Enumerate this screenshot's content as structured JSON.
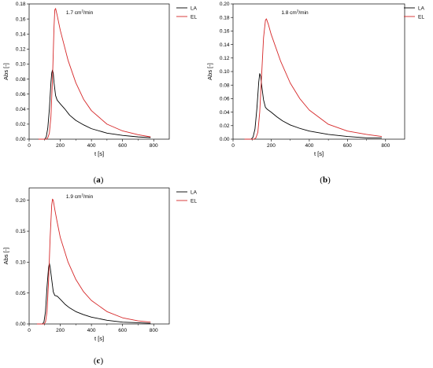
{
  "chart_data": [
    {
      "type": "line",
      "panel_label": "(a)",
      "panel_letter": "a",
      "title_base": "1.7 cm",
      "title_sup": "3",
      "title_tail": "/min",
      "xlabel": "t [s]",
      "ylabel": "Abs [-]",
      "xlim": [
        0,
        900
      ],
      "ylim": [
        0,
        0.18
      ],
      "xticks": [
        0,
        200,
        400,
        600,
        800
      ],
      "yticks": [
        0.0,
        0.02,
        0.04,
        0.06,
        0.08,
        0.1,
        0.12,
        0.14,
        0.16,
        0.18
      ],
      "legend_position": "top-right",
      "series": [
        {
          "name": "LA",
          "color": "#000000",
          "x": [
            60,
            100,
            110,
            120,
            130,
            140,
            145,
            150,
            155,
            160,
            170,
            180,
            200,
            230,
            260,
            300,
            350,
            400,
            500,
            600,
            700,
            780
          ],
          "y": [
            0.0,
            0.0,
            0.003,
            0.015,
            0.04,
            0.075,
            0.088,
            0.092,
            0.088,
            0.075,
            0.058,
            0.052,
            0.047,
            0.04,
            0.032,
            0.025,
            0.019,
            0.014,
            0.008,
            0.005,
            0.003,
            0.002
          ]
        },
        {
          "name": "EL",
          "color": "#d62728",
          "x": [
            60,
            110,
            120,
            130,
            140,
            150,
            160,
            165,
            170,
            180,
            200,
            250,
            300,
            350,
            400,
            500,
            600,
            700,
            780
          ],
          "y": [
            0.0,
            0.0,
            0.002,
            0.008,
            0.03,
            0.08,
            0.15,
            0.172,
            0.174,
            0.165,
            0.145,
            0.105,
            0.075,
            0.053,
            0.038,
            0.02,
            0.011,
            0.006,
            0.003
          ]
        }
      ]
    },
    {
      "type": "line",
      "panel_label": "(b)",
      "panel_letter": "b",
      "title_base": "1.8 cm",
      "title_sup": "3",
      "title_tail": "/min",
      "xlabel": "t [s]",
      "ylabel": "Abs [-]",
      "xlim": [
        0,
        900
      ],
      "ylim": [
        0,
        0.2
      ],
      "xticks": [
        0,
        200,
        400,
        600,
        800
      ],
      "yticks": [
        0.0,
        0.02,
        0.04,
        0.06,
        0.08,
        0.1,
        0.12,
        0.14,
        0.16,
        0.18,
        0.2
      ],
      "legend_position": "top-right",
      "series": [
        {
          "name": "LA",
          "color": "#000000",
          "x": [
            60,
            95,
            105,
            115,
            125,
            135,
            140,
            145,
            150,
            160,
            170,
            180,
            200,
            230,
            260,
            300,
            350,
            400,
            500,
            600,
            700,
            780
          ],
          "y": [
            0.0,
            0.0,
            0.003,
            0.015,
            0.045,
            0.085,
            0.097,
            0.093,
            0.08,
            0.058,
            0.047,
            0.044,
            0.04,
            0.033,
            0.027,
            0.021,
            0.016,
            0.012,
            0.007,
            0.004,
            0.002,
            0.002
          ]
        },
        {
          "name": "EL",
          "color": "#d62728",
          "x": [
            60,
            110,
            120,
            130,
            140,
            150,
            160,
            170,
            175,
            185,
            200,
            250,
            300,
            350,
            400,
            500,
            600,
            700,
            780
          ],
          "y": [
            0.0,
            0.0,
            0.002,
            0.01,
            0.04,
            0.095,
            0.15,
            0.176,
            0.178,
            0.17,
            0.155,
            0.115,
            0.083,
            0.06,
            0.043,
            0.022,
            0.012,
            0.007,
            0.004
          ]
        }
      ]
    },
    {
      "type": "line",
      "panel_label": "(c)",
      "panel_letter": "c",
      "title_base": "1.9 cm",
      "title_sup": "3",
      "title_tail": "/min",
      "xlabel": "t [s]",
      "ylabel": "Abs [-]",
      "xlim": [
        0,
        900
      ],
      "ylim": [
        0,
        0.22
      ],
      "xticks": [
        0,
        200,
        400,
        600,
        800
      ],
      "yticks": [
        0.0,
        0.05,
        0.1,
        0.15,
        0.2
      ],
      "legend_position": "top-right",
      "series": [
        {
          "name": "LA",
          "color": "#000000",
          "x": [
            50,
            85,
            95,
            105,
            115,
            125,
            130,
            135,
            145,
            155,
            165,
            180,
            200,
            230,
            260,
            300,
            350,
            400,
            500,
            600,
            700,
            780
          ],
          "y": [
            0.0,
            0.0,
            0.003,
            0.02,
            0.06,
            0.092,
            0.098,
            0.092,
            0.072,
            0.052,
            0.046,
            0.045,
            0.04,
            0.032,
            0.026,
            0.02,
            0.015,
            0.011,
            0.006,
            0.003,
            0.002,
            0.001
          ]
        },
        {
          "name": "EL",
          "color": "#d62728",
          "x": [
            50,
            95,
            105,
            115,
            125,
            135,
            145,
            150,
            155,
            165,
            180,
            200,
            250,
            300,
            350,
            400,
            500,
            600,
            700,
            780
          ],
          "y": [
            0.0,
            0.0,
            0.003,
            0.02,
            0.07,
            0.14,
            0.192,
            0.202,
            0.2,
            0.185,
            0.165,
            0.14,
            0.1,
            0.072,
            0.052,
            0.038,
            0.02,
            0.01,
            0.005,
            0.003
          ]
        }
      ]
    }
  ]
}
